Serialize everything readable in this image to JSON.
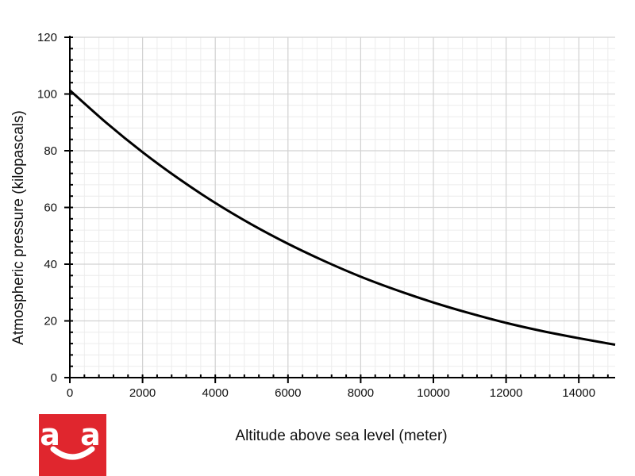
{
  "chart_data": {
    "type": "line",
    "title": "",
    "xlabel": "Altitude above sea level (meter)",
    "ylabel": "Atmospheric pressure (kilopascals)",
    "xlim": [
      0,
      15000
    ],
    "ylim": [
      0,
      120
    ],
    "x_major_ticks": [
      0,
      2000,
      4000,
      6000,
      8000,
      10000,
      12000,
      14000
    ],
    "y_major_ticks": [
      0,
      20,
      40,
      60,
      80,
      100,
      120
    ],
    "x_minor_step": 400,
    "y_minor_step": 4,
    "grid": true,
    "line_color": "#000000",
    "series": [
      {
        "x": [
          0,
          1000,
          2000,
          3000,
          4000,
          5000,
          6000,
          7000,
          8000,
          9000,
          10000,
          11000,
          12000,
          13000,
          14000,
          15000
        ],
        "values": [
          101.3,
          89.9,
          79.5,
          70.1,
          61.6,
          54.0,
          47.2,
          41.1,
          35.6,
          30.8,
          26.5,
          22.7,
          19.3,
          16.4,
          13.9,
          11.6
        ]
      }
    ]
  },
  "logo": {
    "text": "a a",
    "color": "#e0262e"
  }
}
